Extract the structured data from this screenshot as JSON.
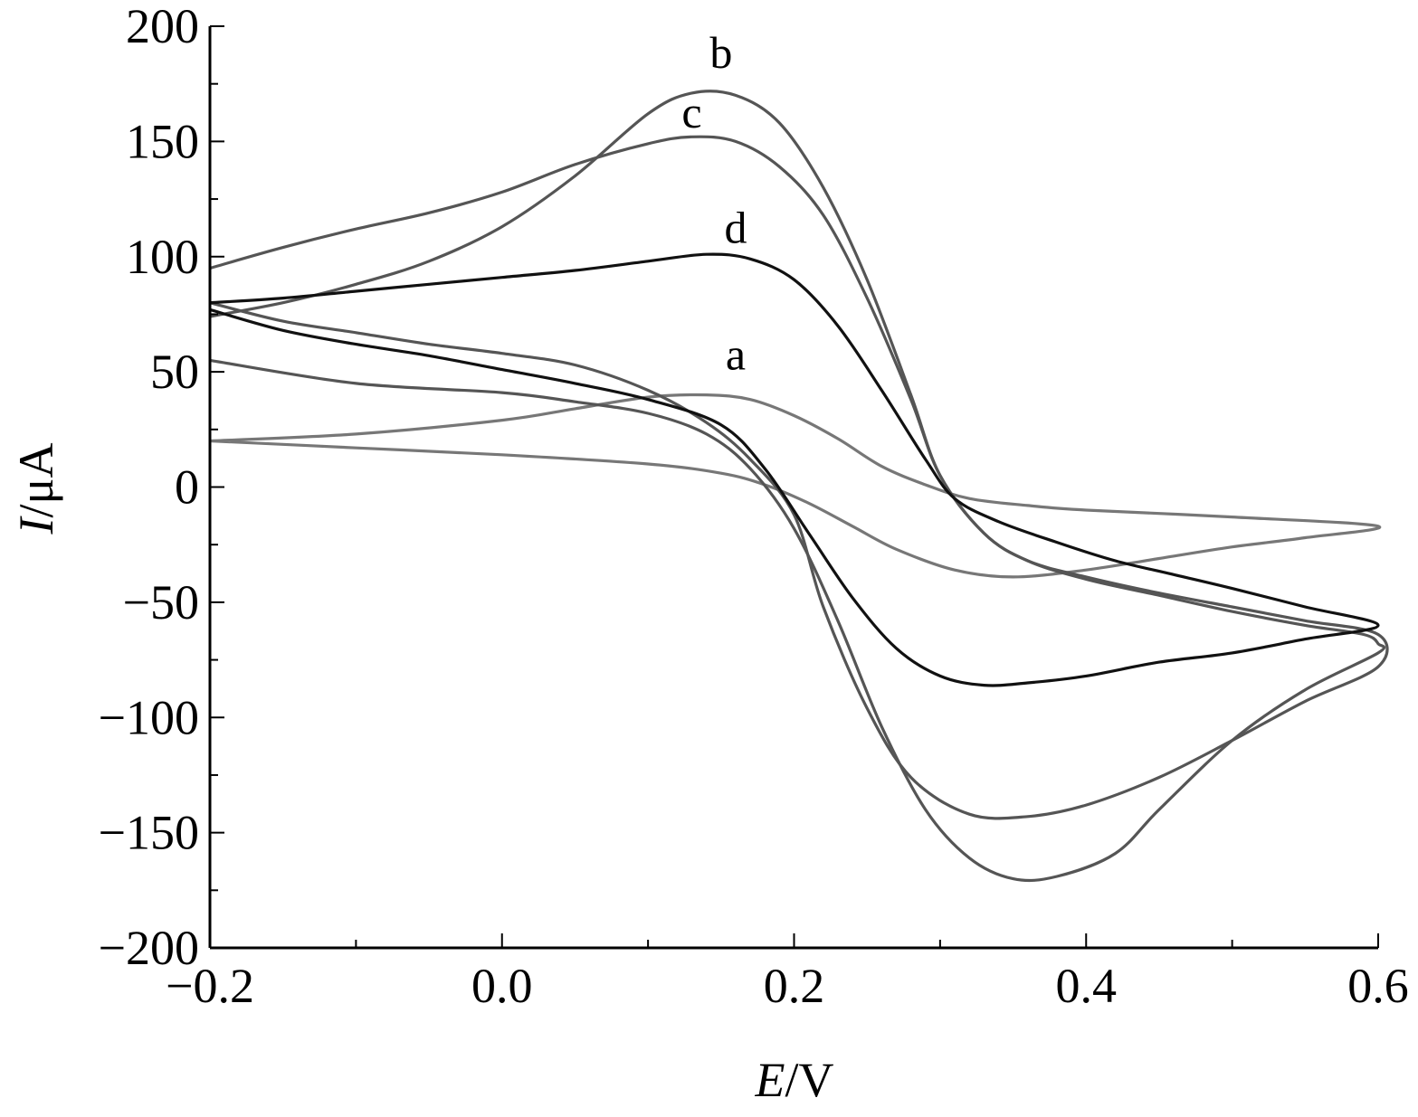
{
  "chart_data": {
    "type": "line",
    "title": "",
    "xlabel": {
      "var": "E",
      "unit": "/V"
    },
    "ylabel": {
      "var": "I",
      "unit": "/μA"
    },
    "xlim": [
      -0.2,
      0.6
    ],
    "ylim": [
      -200,
      200
    ],
    "x_ticks": [
      -0.2,
      0.0,
      0.2,
      0.4,
      0.6
    ],
    "x_tick_labels": [
      "−0.2",
      "0.0",
      "0.2",
      "0.4",
      "0.6"
    ],
    "y_ticks": [
      200,
      150,
      100,
      50,
      0,
      -50,
      -100,
      -150,
      -200
    ],
    "y_tick_labels": [
      "200",
      "150",
      "100",
      "50",
      "0",
      "−50",
      "−100",
      "−150",
      "−200"
    ],
    "grid": false,
    "legend": "none",
    "series": [
      {
        "name": "a",
        "color": "#777777",
        "label_at": [
          0.16,
          51
        ],
        "points": [
          [
            -0.2,
            20
          ],
          [
            -0.1,
            23
          ],
          [
            0.0,
            29
          ],
          [
            0.05,
            34
          ],
          [
            0.1,
            39
          ],
          [
            0.14,
            40
          ],
          [
            0.17,
            38
          ],
          [
            0.2,
            31
          ],
          [
            0.23,
            21
          ],
          [
            0.26,
            9
          ],
          [
            0.29,
            1
          ],
          [
            0.32,
            -5
          ],
          [
            0.36,
            -8
          ],
          [
            0.4,
            -10
          ],
          [
            0.5,
            -13
          ],
          [
            0.6,
            -17
          ],
          [
            0.55,
            -22
          ],
          [
            0.5,
            -26
          ],
          [
            0.45,
            -31
          ],
          [
            0.4,
            -36
          ],
          [
            0.35,
            -39
          ],
          [
            0.31,
            -36
          ],
          [
            0.27,
            -27
          ],
          [
            0.24,
            -17
          ],
          [
            0.21,
            -7
          ],
          [
            0.18,
            1
          ],
          [
            0.15,
            6
          ],
          [
            0.1,
            10
          ],
          [
            0.0,
            14
          ],
          [
            -0.1,
            17
          ],
          [
            -0.2,
            20
          ]
        ]
      },
      {
        "name": "b",
        "color": "#555555",
        "label_at": [
          0.15,
          182
        ],
        "points": [
          [
            -0.2,
            74
          ],
          [
            -0.15,
            80
          ],
          [
            -0.1,
            88
          ],
          [
            -0.05,
            98
          ],
          [
            0.0,
            113
          ],
          [
            0.05,
            135
          ],
          [
            0.1,
            162
          ],
          [
            0.13,
            171
          ],
          [
            0.16,
            170
          ],
          [
            0.19,
            158
          ],
          [
            0.22,
            130
          ],
          [
            0.25,
            90
          ],
          [
            0.28,
            40
          ],
          [
            0.3,
            5
          ],
          [
            0.33,
            -20
          ],
          [
            0.36,
            -32
          ],
          [
            0.4,
            -40
          ],
          [
            0.45,
            -47
          ],
          [
            0.5,
            -54
          ],
          [
            0.55,
            -60
          ],
          [
            0.59,
            -64
          ],
          [
            0.6,
            -68
          ],
          [
            0.6,
            -72
          ],
          [
            0.55,
            -88
          ],
          [
            0.5,
            -110
          ],
          [
            0.45,
            -140
          ],
          [
            0.42,
            -159
          ],
          [
            0.38,
            -169
          ],
          [
            0.35,
            -170
          ],
          [
            0.32,
            -161
          ],
          [
            0.29,
            -140
          ],
          [
            0.26,
            -104
          ],
          [
            0.23,
            -58
          ],
          [
            0.2,
            -18
          ],
          [
            0.17,
            8
          ],
          [
            0.14,
            23
          ],
          [
            0.1,
            32
          ],
          [
            0.05,
            37
          ],
          [
            0.0,
            41
          ],
          [
            -0.1,
            45
          ],
          [
            -0.2,
            55
          ]
        ]
      },
      {
        "name": "c",
        "color": "#555555",
        "label_at": [
          0.13,
          156
        ],
        "points": [
          [
            -0.2,
            95
          ],
          [
            -0.15,
            104
          ],
          [
            -0.1,
            112
          ],
          [
            -0.05,
            119
          ],
          [
            0.0,
            128
          ],
          [
            0.05,
            140
          ],
          [
            0.1,
            149
          ],
          [
            0.13,
            152
          ],
          [
            0.16,
            150
          ],
          [
            0.19,
            139
          ],
          [
            0.22,
            118
          ],
          [
            0.25,
            82
          ],
          [
            0.28,
            38
          ],
          [
            0.3,
            5
          ],
          [
            0.33,
            -20
          ],
          [
            0.36,
            -32
          ],
          [
            0.4,
            -39
          ],
          [
            0.45,
            -46
          ],
          [
            0.5,
            -52
          ],
          [
            0.55,
            -58
          ],
          [
            0.6,
            -64
          ],
          [
            0.6,
            -78
          ],
          [
            0.55,
            -93
          ],
          [
            0.5,
            -110
          ],
          [
            0.45,
            -126
          ],
          [
            0.4,
            -138
          ],
          [
            0.36,
            -143
          ],
          [
            0.32,
            -142
          ],
          [
            0.28,
            -126
          ],
          [
            0.25,
            -96
          ],
          [
            0.22,
            -52
          ],
          [
            0.2,
            -12
          ],
          [
            0.17,
            12
          ],
          [
            0.14,
            28
          ],
          [
            0.1,
            42
          ],
          [
            0.05,
            53
          ],
          [
            0.0,
            58
          ],
          [
            -0.05,
            62
          ],
          [
            -0.1,
            67
          ],
          [
            -0.15,
            72
          ],
          [
            -0.2,
            80
          ]
        ]
      },
      {
        "name": "d",
        "color": "#111111",
        "label_at": [
          0.16,
          106
        ],
        "points": [
          [
            -0.2,
            80
          ],
          [
            -0.15,
            82
          ],
          [
            -0.1,
            85
          ],
          [
            -0.05,
            88
          ],
          [
            0.0,
            91
          ],
          [
            0.05,
            94
          ],
          [
            0.1,
            98
          ],
          [
            0.14,
            101
          ],
          [
            0.17,
            99
          ],
          [
            0.2,
            90
          ],
          [
            0.23,
            70
          ],
          [
            0.26,
            42
          ],
          [
            0.29,
            12
          ],
          [
            0.31,
            -5
          ],
          [
            0.34,
            -15
          ],
          [
            0.38,
            -24
          ],
          [
            0.42,
            -32
          ],
          [
            0.46,
            -38
          ],
          [
            0.5,
            -44
          ],
          [
            0.55,
            -52
          ],
          [
            0.6,
            -60
          ],
          [
            0.55,
            -66
          ],
          [
            0.5,
            -72
          ],
          [
            0.45,
            -76
          ],
          [
            0.4,
            -82
          ],
          [
            0.36,
            -85
          ],
          [
            0.33,
            -86
          ],
          [
            0.3,
            -82
          ],
          [
            0.27,
            -70
          ],
          [
            0.24,
            -48
          ],
          [
            0.21,
            -20
          ],
          [
            0.18,
            8
          ],
          [
            0.15,
            27
          ],
          [
            0.1,
            38
          ],
          [
            0.05,
            45
          ],
          [
            0.0,
            51
          ],
          [
            -0.05,
            57
          ],
          [
            -0.1,
            62
          ],
          [
            -0.15,
            68
          ],
          [
            -0.2,
            77
          ]
        ]
      }
    ]
  }
}
